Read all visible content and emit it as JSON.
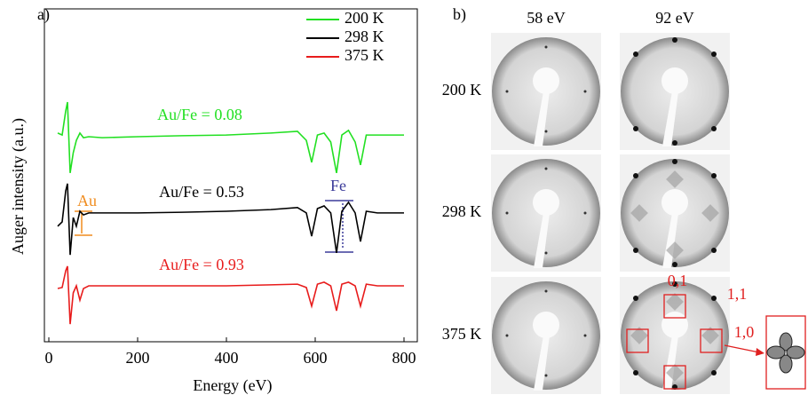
{
  "chart_data": {
    "type": "line",
    "panel_label": "a)",
    "x_label": "Energy (eV)",
    "y_label": "Auger intensity (a.u.)",
    "x": [
      20,
      30,
      38,
      42,
      48,
      55,
      62,
      70,
      78,
      90,
      120,
      200,
      300,
      400,
      500,
      560,
      580,
      592,
      605,
      620,
      635,
      648,
      660,
      675,
      690,
      702,
      715,
      740,
      800
    ],
    "series": [
      {
        "name": "200 K",
        "color": "#22e022",
        "values": [
          6.27,
          6.21,
          6.93,
          7.2,
          5.07,
          5.68,
          6.05,
          6.27,
          6.13,
          6.16,
          6.13,
          6.16,
          6.19,
          6.21,
          6.27,
          6.32,
          6.05,
          5.39,
          6.21,
          6.27,
          6.0,
          5.07,
          6.21,
          6.35,
          6.0,
          5.31,
          6.21,
          6.21,
          6.21
        ]
      },
      {
        "name": "298 K",
        "color": "#000000",
        "values": [
          3.47,
          3.6,
          4.53,
          4.75,
          2.61,
          3.73,
          3.47,
          3.92,
          3.81,
          3.87,
          3.87,
          3.87,
          3.89,
          3.92,
          3.97,
          4.03,
          3.87,
          3.17,
          4.0,
          4.08,
          3.87,
          2.67,
          3.92,
          4.19,
          3.87,
          3.01,
          3.92,
          3.87,
          3.87
        ]
      },
      {
        "name": "375 K",
        "color": "#e81c1c",
        "values": [
          1.6,
          1.63,
          2.13,
          2.27,
          0.53,
          1.47,
          1.68,
          1.25,
          1.6,
          1.68,
          1.68,
          1.68,
          1.68,
          1.68,
          1.71,
          1.73,
          1.63,
          1.07,
          1.73,
          1.79,
          1.68,
          0.93,
          1.73,
          1.79,
          1.68,
          1.07,
          1.73,
          1.68,
          1.68
        ]
      }
    ],
    "xlim": [
      -10,
      830
    ],
    "xticks": [
      0,
      200,
      400,
      600,
      800
    ],
    "ylim": [
      0,
      10
    ],
    "annotations": [
      "Au/Fe = 0.08",
      "Au/Fe = 0.53",
      "Au/Fe = 0.93",
      "Au",
      "Fe"
    ]
  },
  "panel_b": {
    "label": "b)",
    "columns": [
      "58 eV",
      "92 eV"
    ],
    "rows": [
      "200 K",
      "298 K",
      "375 K"
    ],
    "spot_labels": [
      "0,1",
      "1,1",
      "1,0"
    ]
  }
}
